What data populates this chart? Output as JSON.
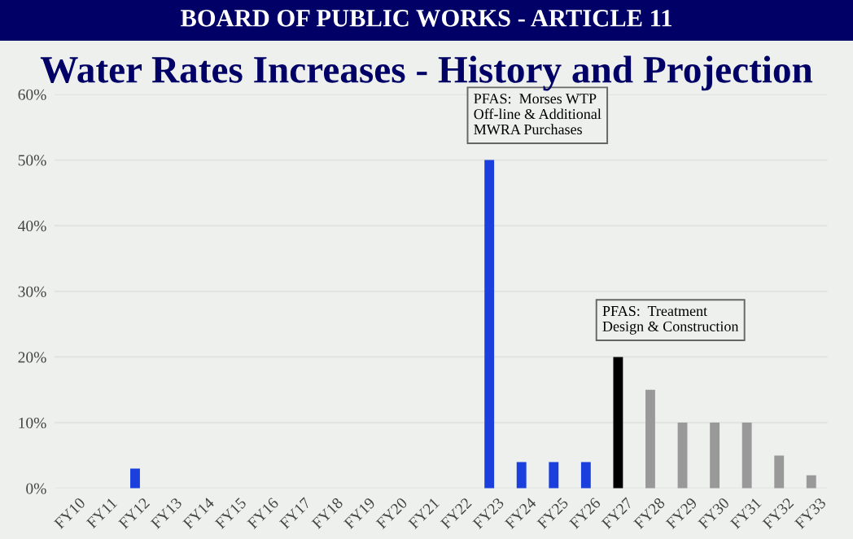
{
  "chart_data": {
    "type": "bar",
    "subtitle": "BOARD OF PUBLIC WORKS - ARTICLE 11",
    "title": "Water Rates Increases - History and Projection",
    "categories": [
      "FY10",
      "FY11",
      "FY12",
      "FY13",
      "FY14",
      "FY15",
      "FY16",
      "FY17",
      "FY18",
      "FY19",
      "FY20",
      "FY21",
      "FY22",
      "FY23",
      "FY24",
      "FY25",
      "FY26",
      "FY27",
      "FY28",
      "FY29",
      "FY30",
      "FY31",
      "FY32",
      "FY33"
    ],
    "values": [
      0,
      0,
      3,
      0,
      0,
      0,
      0,
      0,
      0,
      0,
      0,
      0,
      0,
      50,
      4,
      4,
      4,
      20,
      15,
      10,
      10,
      10,
      5,
      2
    ],
    "colors": [
      "#1a3fdc",
      "#1a3fdc",
      "#1a3fdc",
      "#1a3fdc",
      "#1a3fdc",
      "#1a3fdc",
      "#1a3fdc",
      "#1a3fdc",
      "#1a3fdc",
      "#1a3fdc",
      "#1a3fdc",
      "#1a3fdc",
      "#1a3fdc",
      "#1a3fdc",
      "#1a3fdc",
      "#1a3fdc",
      "#1a3fdc",
      "#000000",
      "#999999",
      "#999999",
      "#999999",
      "#999999",
      "#999999",
      "#999999"
    ],
    "ylim": [
      0,
      60
    ],
    "yticks": [
      {
        "value": 0,
        "label": "0%"
      },
      {
        "value": 10,
        "label": "10%"
      },
      {
        "value": 20,
        "label": "20%"
      },
      {
        "value": 30,
        "label": "30%"
      },
      {
        "value": 40,
        "label": "40%"
      },
      {
        "value": 50,
        "label": "50%"
      },
      {
        "value": 60,
        "label": "60%"
      }
    ],
    "grid": "y",
    "annotations": [
      {
        "text": "PFAS:  Morses WTP\nOff-line & Additional\nMWRA Purchases",
        "x": "FY23",
        "y": 50
      },
      {
        "text": "PFAS:  Treatment\nDesign & Construction",
        "x": "FY27",
        "y": 20
      }
    ]
  }
}
